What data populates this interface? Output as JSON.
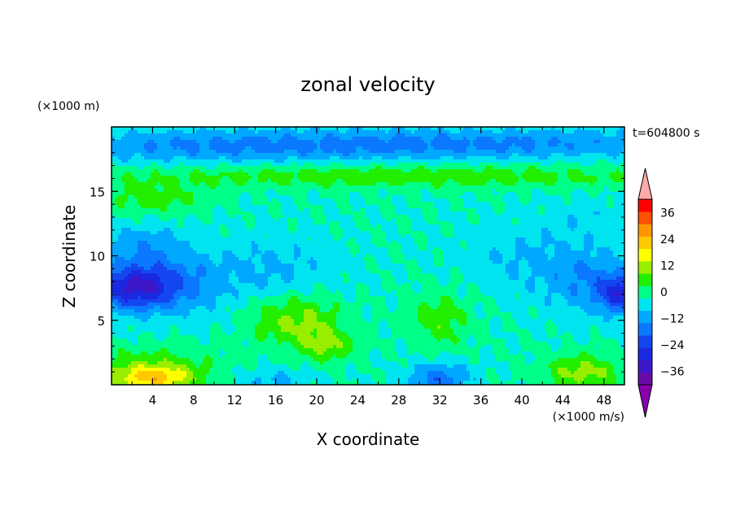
{
  "chart_data": {
    "type": "heatmap",
    "title": "zonal velocity",
    "xlabel": "X coordinate",
    "ylabel": "Z coordinate",
    "x_unit": "(×1000 m/s)",
    "y_unit": "(×1000 m)",
    "time_label": "t=604800 s",
    "xlim": [
      0,
      50
    ],
    "ylim": [
      0,
      20
    ],
    "x_ticks": [
      4,
      8,
      12,
      16,
      20,
      24,
      28,
      32,
      36,
      40,
      44,
      48
    ],
    "y_ticks": [
      5,
      10,
      15
    ],
    "colorbar": {
      "ticks": [
        36,
        24,
        12,
        0,
        -12,
        -24,
        -36
      ],
      "levels": [
        -42,
        -36,
        -30,
        -24,
        -18,
        -12,
        -6,
        0,
        6,
        12,
        18,
        24,
        30,
        36,
        42
      ],
      "colors": [
        "#6a0aa8",
        "#3d16c8",
        "#1a28e0",
        "#1446f0",
        "#0a78ff",
        "#00a8ff",
        "#00e4f0",
        "#00ff88",
        "#22ee00",
        "#99ee00",
        "#ffff00",
        "#ffc800",
        "#ff9600",
        "#ff5000",
        "#ff0000"
      ],
      "over_color": "#ffaaaa",
      "under_color": "#8800aa"
    },
    "features": [
      {
        "x": 2,
        "z": 7.5,
        "value": -22,
        "sx": 4,
        "sz": 1.6
      },
      {
        "x": 5,
        "z": 8,
        "value": -14,
        "sx": 6,
        "sz": 2.5
      },
      {
        "x": 47,
        "z": 8,
        "value": -12,
        "sx": 5,
        "sz": 2.5
      },
      {
        "x": 49.5,
        "z": 7,
        "value": -20,
        "sx": 2,
        "sz": 1.4
      },
      {
        "x": 18,
        "z": 5,
        "value": 14,
        "sx": 4.5,
        "sz": 2
      },
      {
        "x": 21,
        "z": 3,
        "value": 12,
        "sx": 2.5,
        "sz": 1.2
      },
      {
        "x": 32,
        "z": 5,
        "value": 10,
        "sx": 2.8,
        "sz": 2.2
      },
      {
        "x": 4,
        "z": 0.5,
        "value": 22,
        "sx": 4,
        "sz": 0.9
      },
      {
        "x": 4,
        "z": 1.5,
        "value": 10,
        "sx": 6,
        "sz": 1.5
      },
      {
        "x": 46,
        "z": 1,
        "value": 14,
        "sx": 4,
        "sz": 1.4
      },
      {
        "x": 32,
        "z": 0.5,
        "value": -16,
        "sx": 3,
        "sz": 1.2
      },
      {
        "x": 16,
        "z": 0.4,
        "value": -8,
        "sx": 3,
        "sz": 0.8
      },
      {
        "x": 28,
        "z": 16.2,
        "value": 10,
        "sx": 30,
        "sz": 0.9
      },
      {
        "x": 4,
        "z": 14.5,
        "value": 9,
        "sx": 5,
        "sz": 1.2
      },
      {
        "x": 10,
        "z": 18.5,
        "value": -12,
        "sx": 20,
        "sz": 1.3
      },
      {
        "x": 38,
        "z": 18.7,
        "value": -12,
        "sx": 20,
        "sz": 1.2
      },
      {
        "x": 16,
        "z": 9,
        "value": -7,
        "sx": 6,
        "sz": 2.5
      },
      {
        "x": 40,
        "z": 10,
        "value": -6,
        "sx": 6,
        "sz": 2.5
      },
      {
        "x": 3,
        "z": 11,
        "value": -8,
        "sx": 4,
        "sz": 1.5
      },
      {
        "x": 46,
        "z": 13,
        "value": -4,
        "sx": 4,
        "sz": 1.5
      }
    ]
  }
}
